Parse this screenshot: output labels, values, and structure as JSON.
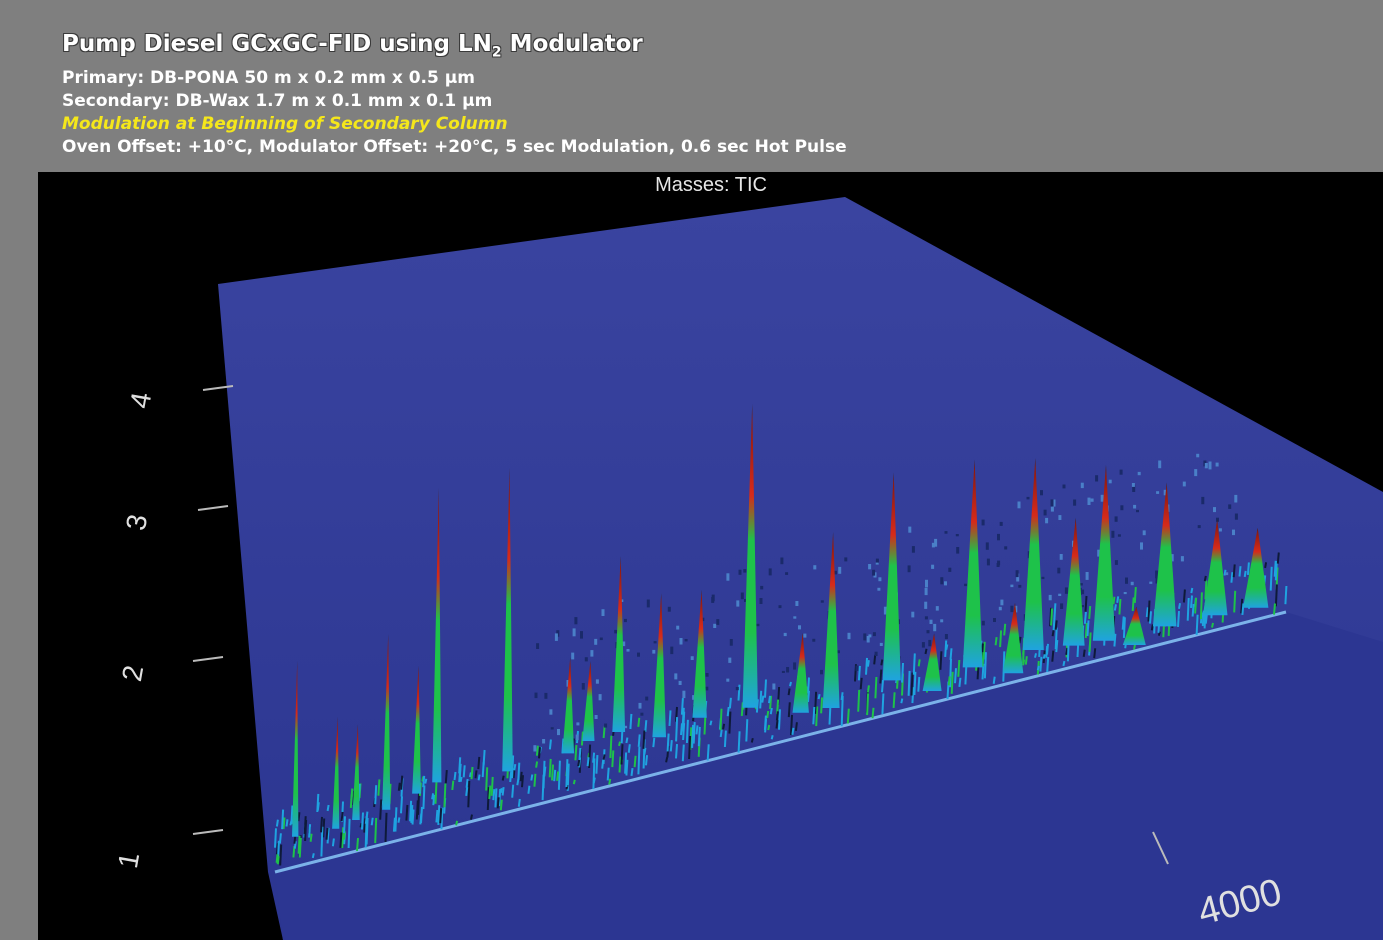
{
  "header": {
    "title_main": "Pump Diesel GCxGC-FID using LN",
    "title_subscript": "2",
    "title_end": " Modulator",
    "line1": "Primary: DB-PONA 50 m x 0.2 mm x 0.5 μm",
    "line2": "Secondary: DB-Wax 1.7 m x 0.1 mm x 0.1 μm",
    "line3": "Modulation at Beginning of Secondary Column",
    "line4": "Oven Offset: +10°C,  Modulator Offset: +20°C, 5 sec Modulation, 0.6 sec Hot Pulse"
  },
  "colors": {
    "background": "#7f7f7f",
    "plot_background": "#000000",
    "surface": "#2e3896",
    "highlight_text": "#f5e71b"
  },
  "chart_data": {
    "type": "heatmap",
    "title": "Masses:  TIC",
    "y_axis": {
      "ticks": [
        "1",
        "2",
        "3",
        "4"
      ]
    },
    "x_axis": {
      "ticks": [
        "4000"
      ]
    },
    "colormap": [
      "#2e3896",
      "#1fa3e0",
      "#1ec24a",
      "#e8c21a",
      "#d62a1a",
      "#2a1a1a"
    ],
    "peaks": [
      {
        "x": 0.02,
        "y": 0.5,
        "h": 0.55
      },
      {
        "x": 0.06,
        "y": 0.46,
        "h": 0.35
      },
      {
        "x": 0.08,
        "y": 0.52,
        "h": 0.3
      },
      {
        "x": 0.11,
        "y": 0.56,
        "h": 0.55
      },
      {
        "x": 0.14,
        "y": 0.7,
        "h": 0.4
      },
      {
        "x": 0.16,
        "y": 0.8,
        "h": 0.92
      },
      {
        "x": 0.23,
        "y": 0.68,
        "h": 0.95
      },
      {
        "x": 0.29,
        "y": 0.72,
        "h": 0.3
      },
      {
        "x": 0.31,
        "y": 0.84,
        "h": 0.25
      },
      {
        "x": 0.34,
        "y": 0.86,
        "h": 0.55
      },
      {
        "x": 0.38,
        "y": 0.6,
        "h": 0.45
      },
      {
        "x": 0.42,
        "y": 0.75,
        "h": 0.4
      },
      {
        "x": 0.47,
        "y": 0.7,
        "h": 0.95
      },
      {
        "x": 0.52,
        "y": 0.4,
        "h": 0.25
      },
      {
        "x": 0.55,
        "y": 0.35,
        "h": 0.55
      },
      {
        "x": 0.61,
        "y": 0.55,
        "h": 0.65
      },
      {
        "x": 0.65,
        "y": 0.2,
        "h": 0.18
      },
      {
        "x": 0.69,
        "y": 0.42,
        "h": 0.65
      },
      {
        "x": 0.73,
        "y": 0.15,
        "h": 0.22
      },
      {
        "x": 0.75,
        "y": 0.45,
        "h": 0.6
      },
      {
        "x": 0.79,
        "y": 0.35,
        "h": 0.4
      },
      {
        "x": 0.82,
        "y": 0.3,
        "h": 0.55
      },
      {
        "x": 0.85,
        "y": 0.1,
        "h": 0.12
      },
      {
        "x": 0.88,
        "y": 0.28,
        "h": 0.45
      },
      {
        "x": 0.93,
        "y": 0.25,
        "h": 0.3
      },
      {
        "x": 0.97,
        "y": 0.2,
        "h": 0.25
      }
    ]
  }
}
